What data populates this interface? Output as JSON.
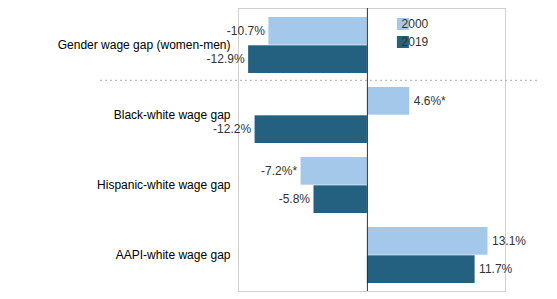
{
  "chart_data": {
    "type": "bar",
    "orientation": "horizontal",
    "categories": [
      "Gender wage gap (women-men)",
      "Black-white wage gap",
      "Hispanic-white wage gap",
      "AAPI-white wage gap"
    ],
    "series": [
      {
        "name": "2000",
        "color": "#a4c8ea",
        "values": [
          -10.7,
          4.6,
          -7.2,
          13.1
        ],
        "value_labels": [
          "-10.7%",
          "4.6%*",
          "-7.2%*",
          "13.1%"
        ]
      },
      {
        "name": "2019",
        "color": "#24607f",
        "values": [
          -12.9,
          -12.2,
          -5.8,
          11.7
        ],
        "value_labels": [
          "-12.9%",
          "-12.2%",
          "-5.8%",
          "11.7%"
        ]
      }
    ],
    "xlim": [
      -14,
      15
    ],
    "xticks": [
      0
    ],
    "data_labels": true,
    "tick_labels": "y",
    "grid": false,
    "legend": "top-right"
  }
}
